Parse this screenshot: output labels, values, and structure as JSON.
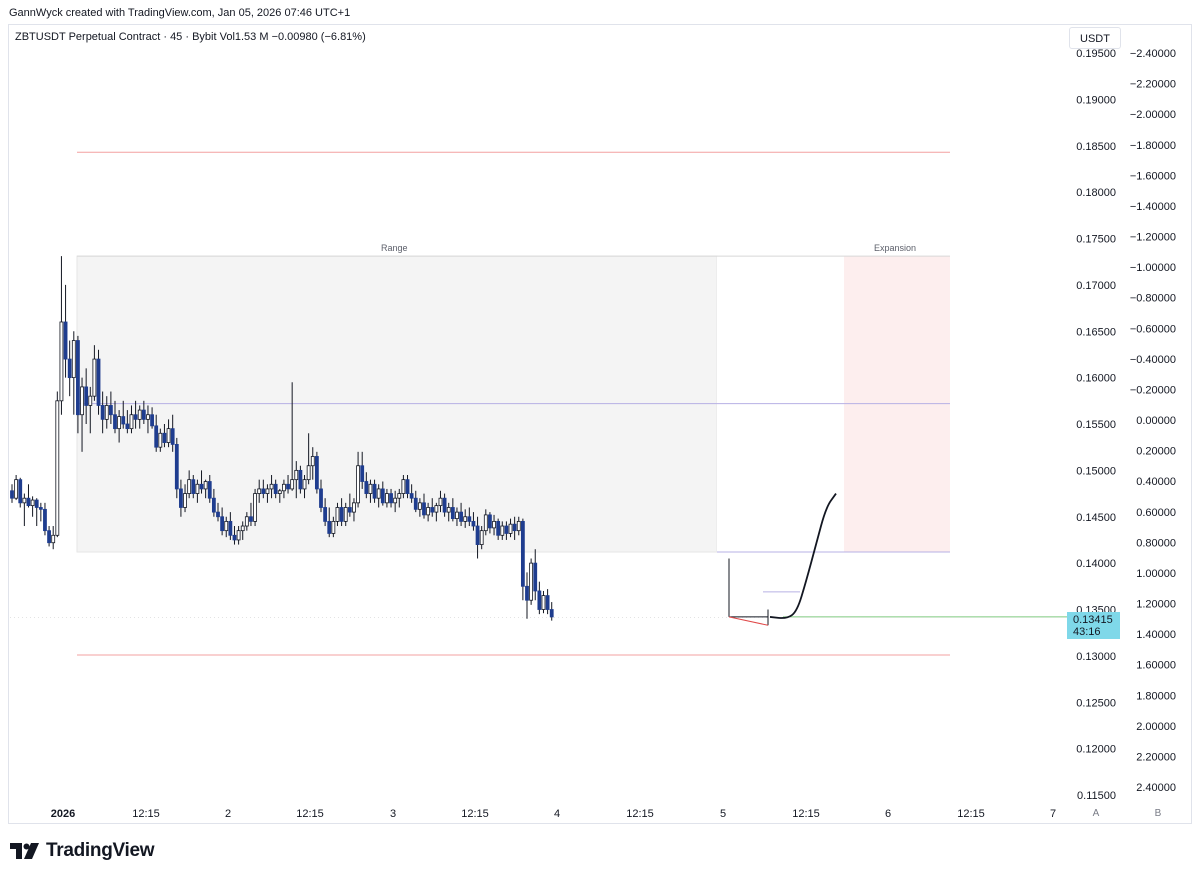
{
  "header": {
    "credit": "GannWyck created with TradingView.com, Jan 05, 2026 07:46 UTC+1"
  },
  "symbol_info": "ZBTUSDT Perpetual Contract · 45 · Bybit  Vol1.53 M  −0.00980 (−6.81%)",
  "currency_button": "USDT",
  "price_tag": {
    "price": "0.13415",
    "countdown": "43:16"
  },
  "zones": {
    "range_label": "Range",
    "expansion_label": "Expansion"
  },
  "scale_buttons": {
    "a": "A",
    "b": "B"
  },
  "brand": "TradingView",
  "colors": {
    "up_candle": "#ffffff",
    "down_candle": "#1f3d8f",
    "range_fill": "#f4f4f4",
    "expansion_fill": "#fdeeee",
    "hline_red": "#f3a0a0",
    "hline_purple": "#b7b0e4",
    "hline_green": "#7dca7d",
    "price_tag": "#7fd8e9"
  },
  "chart_data": {
    "type": "candlestick",
    "price_axis": {
      "ticks": [
        "0.19500",
        "0.19000",
        "0.18500",
        "0.18000",
        "0.17500",
        "0.17000",
        "0.16500",
        "0.16000",
        "0.15500",
        "0.15000",
        "0.14500",
        "0.14000",
        "0.13500",
        "0.13000",
        "0.12500",
        "0.12000",
        "0.11500"
      ],
      "range": [
        0.1146,
        0.1961
      ]
    },
    "secondary_axis": {
      "ticks": [
        "−2.40000",
        "−2.20000",
        "−2.00000",
        "−1.80000",
        "−1.60000",
        "−1.40000",
        "−1.20000",
        "−1.00000",
        "−0.80000",
        "−0.60000",
        "−0.40000",
        "−0.20000",
        "0.00000",
        "0.20000",
        "0.40000",
        "0.60000",
        "0.80000",
        "1.00000",
        "1.20000",
        "1.40000",
        "1.60000",
        "1.80000",
        "2.00000",
        "2.20000",
        "2.40000"
      ]
    },
    "time_axis": {
      "ticks": [
        "2026",
        "12:15",
        "2",
        "12:15",
        "3",
        "12:15",
        "4",
        "12:15",
        "5",
        "12:15",
        "6",
        "12:15",
        "7"
      ]
    },
    "levels": [
      {
        "price": 0.1843,
        "color": "red"
      },
      {
        "price": 0.1572,
        "color": "purple"
      },
      {
        "price": 0.1412,
        "color": "purple"
      },
      {
        "price": 0.1369,
        "color": "purple"
      },
      {
        "price": 0.1342,
        "color": "green"
      },
      {
        "price": 0.1301,
        "color": "red"
      }
    ],
    "zones": [
      {
        "name": "Range",
        "top": 0.1731,
        "bottom": 0.1412
      },
      {
        "name": "Expansion",
        "top": 0.1731,
        "bottom": 0.1412
      }
    ],
    "projection": [
      0.1342,
      0.134,
      0.1348,
      0.138,
      0.142,
      0.146,
      0.1475
    ],
    "candles": [
      [
        0.1478,
        0.1485,
        0.1465,
        0.147
      ],
      [
        0.147,
        0.1495,
        0.1468,
        0.149
      ],
      [
        0.149,
        0.1492,
        0.146,
        0.1465
      ],
      [
        0.1465,
        0.1475,
        0.144,
        0.147
      ],
      [
        0.147,
        0.1485,
        0.146,
        0.1462
      ],
      [
        0.1462,
        0.1472,
        0.145,
        0.1468
      ],
      [
        0.1468,
        0.147,
        0.144,
        0.146
      ],
      [
        0.146,
        0.1465,
        0.1445,
        0.1458
      ],
      [
        0.1458,
        0.1465,
        0.143,
        0.1435
      ],
      [
        0.1435,
        0.144,
        0.1418,
        0.1422
      ],
      [
        0.1422,
        0.144,
        0.1415,
        0.143
      ],
      [
        0.143,
        0.1585,
        0.1428,
        0.1575
      ],
      [
        0.1575,
        0.1731,
        0.156,
        0.166
      ],
      [
        0.166,
        0.17,
        0.16,
        0.162
      ],
      [
        0.162,
        0.164,
        0.158,
        0.16
      ],
      [
        0.16,
        0.165,
        0.156,
        0.164
      ],
      [
        0.164,
        0.1645,
        0.154,
        0.156
      ],
      [
        0.156,
        0.16,
        0.152,
        0.159
      ],
      [
        0.159,
        0.161,
        0.155,
        0.157
      ],
      [
        0.157,
        0.159,
        0.154,
        0.158
      ],
      [
        0.158,
        0.1635,
        0.1575,
        0.162
      ],
      [
        0.162,
        0.163,
        0.156,
        0.157
      ],
      [
        0.157,
        0.1585,
        0.154,
        0.1555
      ],
      [
        0.1555,
        0.158,
        0.1545,
        0.157
      ],
      [
        0.157,
        0.1585,
        0.155,
        0.156
      ],
      [
        0.156,
        0.1575,
        0.154,
        0.1545
      ],
      [
        0.1545,
        0.1565,
        0.153,
        0.1558
      ],
      [
        0.1558,
        0.1575,
        0.1545,
        0.155
      ],
      [
        0.155,
        0.1565,
        0.154,
        0.1545
      ],
      [
        0.1545,
        0.157,
        0.154,
        0.156
      ],
      [
        0.156,
        0.1575,
        0.1545,
        0.1555
      ],
      [
        0.1555,
        0.157,
        0.1545,
        0.1565
      ],
      [
        0.1565,
        0.1575,
        0.155,
        0.1555
      ],
      [
        0.1555,
        0.157,
        0.154,
        0.156
      ],
      [
        0.156,
        0.1568,
        0.1545,
        0.1548
      ],
      [
        0.1548,
        0.156,
        0.152,
        0.1525
      ],
      [
        0.1525,
        0.1545,
        0.152,
        0.154
      ],
      [
        0.154,
        0.155,
        0.1525,
        0.153
      ],
      [
        0.153,
        0.1555,
        0.1525,
        0.1545
      ],
      [
        0.1545,
        0.156,
        0.152,
        0.1528
      ],
      [
        0.1528,
        0.1535,
        0.147,
        0.148
      ],
      [
        0.148,
        0.149,
        0.145,
        0.146
      ],
      [
        0.146,
        0.1485,
        0.1455,
        0.1475
      ],
      [
        0.1475,
        0.15,
        0.147,
        0.149
      ],
      [
        0.149,
        0.1495,
        0.147,
        0.1475
      ],
      [
        0.1475,
        0.149,
        0.1465,
        0.1485
      ],
      [
        0.1485,
        0.15,
        0.1475,
        0.148
      ],
      [
        0.148,
        0.149,
        0.147,
        0.1488
      ],
      [
        0.1488,
        0.1495,
        0.1465,
        0.147
      ],
      [
        0.147,
        0.148,
        0.145,
        0.1455
      ],
      [
        0.1455,
        0.1465,
        0.1445,
        0.145
      ],
      [
        0.145,
        0.146,
        0.143,
        0.1435
      ],
      [
        0.1435,
        0.145,
        0.1428,
        0.1445
      ],
      [
        0.1445,
        0.1455,
        0.1425,
        0.143
      ],
      [
        0.143,
        0.144,
        0.142,
        0.1425
      ],
      [
        0.1425,
        0.144,
        0.142,
        0.1435
      ],
      [
        0.1435,
        0.1445,
        0.1425,
        0.144
      ],
      [
        0.144,
        0.1455,
        0.1435,
        0.145
      ],
      [
        0.145,
        0.1465,
        0.144,
        0.1445
      ],
      [
        0.1445,
        0.148,
        0.144,
        0.1475
      ],
      [
        0.1475,
        0.149,
        0.1465,
        0.148
      ],
      [
        0.148,
        0.149,
        0.147,
        0.1475
      ],
      [
        0.1475,
        0.1485,
        0.1465,
        0.148
      ],
      [
        0.148,
        0.1495,
        0.147,
        0.1485
      ],
      [
        0.1485,
        0.149,
        0.147,
        0.1475
      ],
      [
        0.1475,
        0.148,
        0.1465,
        0.1478
      ],
      [
        0.1478,
        0.149,
        0.147,
        0.1485
      ],
      [
        0.1485,
        0.1495,
        0.1475,
        0.148
      ],
      [
        0.148,
        0.1595,
        0.1478,
        0.149
      ],
      [
        0.149,
        0.151,
        0.147,
        0.15
      ],
      [
        0.15,
        0.1505,
        0.1475,
        0.148
      ],
      [
        0.148,
        0.1495,
        0.147,
        0.149
      ],
      [
        0.149,
        0.154,
        0.1485,
        0.1505
      ],
      [
        0.1505,
        0.1525,
        0.149,
        0.1515
      ],
      [
        0.1515,
        0.152,
        0.1475,
        0.148
      ],
      [
        0.148,
        0.149,
        0.1455,
        0.146
      ],
      [
        0.146,
        0.147,
        0.144,
        0.1445
      ],
      [
        0.1445,
        0.146,
        0.1428,
        0.1432
      ],
      [
        0.1432,
        0.145,
        0.1428,
        0.1445
      ],
      [
        0.1445,
        0.1465,
        0.144,
        0.146
      ],
      [
        0.146,
        0.147,
        0.144,
        0.1445
      ],
      [
        0.1445,
        0.1465,
        0.144,
        0.146
      ],
      [
        0.146,
        0.1475,
        0.145,
        0.1455
      ],
      [
        0.1455,
        0.147,
        0.1445,
        0.1465
      ],
      [
        0.1465,
        0.152,
        0.146,
        0.1505
      ],
      [
        0.1505,
        0.152,
        0.148,
        0.1488
      ],
      [
        0.1488,
        0.1498,
        0.147,
        0.1475
      ],
      [
        0.1475,
        0.149,
        0.1465,
        0.1485
      ],
      [
        0.1485,
        0.149,
        0.1465,
        0.147
      ],
      [
        0.147,
        0.1485,
        0.146,
        0.148
      ],
      [
        0.148,
        0.1488,
        0.1462,
        0.1465
      ],
      [
        0.1465,
        0.148,
        0.146,
        0.1475
      ],
      [
        0.1475,
        0.148,
        0.146,
        0.1465
      ],
      [
        0.1465,
        0.1478,
        0.1455,
        0.147
      ],
      [
        0.147,
        0.148,
        0.146,
        0.1475
      ],
      [
        0.1475,
        0.1495,
        0.147,
        0.149
      ],
      [
        0.149,
        0.1495,
        0.147,
        0.1475
      ],
      [
        0.1475,
        0.1485,
        0.1465,
        0.147
      ],
      [
        0.147,
        0.1478,
        0.1455,
        0.1458
      ],
      [
        0.1458,
        0.147,
        0.145,
        0.1465
      ],
      [
        0.1465,
        0.1475,
        0.1448,
        0.1452
      ],
      [
        0.1452,
        0.1465,
        0.1445,
        0.146
      ],
      [
        0.146,
        0.147,
        0.145,
        0.1455
      ],
      [
        0.1455,
        0.1465,
        0.1445,
        0.1462
      ],
      [
        0.1462,
        0.1478,
        0.1455,
        0.147
      ],
      [
        0.147,
        0.1475,
        0.145,
        0.1455
      ],
      [
        0.1455,
        0.1465,
        0.1445,
        0.146
      ],
      [
        0.146,
        0.147,
        0.1445,
        0.1448
      ],
      [
        0.1448,
        0.146,
        0.144,
        0.1455
      ],
      [
        0.1455,
        0.1465,
        0.144,
        0.1445
      ],
      [
        0.1445,
        0.1458,
        0.1438,
        0.145
      ],
      [
        0.145,
        0.146,
        0.144,
        0.1445
      ],
      [
        0.1445,
        0.1455,
        0.1435,
        0.144
      ],
      [
        0.144,
        0.145,
        0.1405,
        0.142
      ],
      [
        0.142,
        0.144,
        0.1415,
        0.1435
      ],
      [
        0.1435,
        0.1458,
        0.143,
        0.1452
      ],
      [
        0.1452,
        0.1455,
        0.1432,
        0.1438
      ],
      [
        0.1438,
        0.1452,
        0.143,
        0.1445
      ],
      [
        0.1445,
        0.1448,
        0.1425,
        0.143
      ],
      [
        0.143,
        0.1445,
        0.1425,
        0.144
      ],
      [
        0.144,
        0.1445,
        0.1425,
        0.1432
      ],
      [
        0.1432,
        0.1448,
        0.1428,
        0.1442
      ],
      [
        0.1442,
        0.145,
        0.1425,
        0.1435
      ],
      [
        0.1435,
        0.145,
        0.143,
        0.1445
      ],
      [
        0.1445,
        0.1448,
        0.136,
        0.1375
      ],
      [
        0.1375,
        0.139,
        0.134,
        0.136
      ],
      [
        0.136,
        0.1405,
        0.1355,
        0.14
      ],
      [
        0.14,
        0.1415,
        0.136,
        0.137
      ],
      [
        0.137,
        0.138,
        0.1345,
        0.135
      ],
      [
        0.135,
        0.137,
        0.1346,
        0.1365
      ],
      [
        0.1365,
        0.1372,
        0.1345,
        0.135
      ],
      [
        0.135,
        0.1358,
        0.1338,
        0.1342
      ]
    ]
  }
}
